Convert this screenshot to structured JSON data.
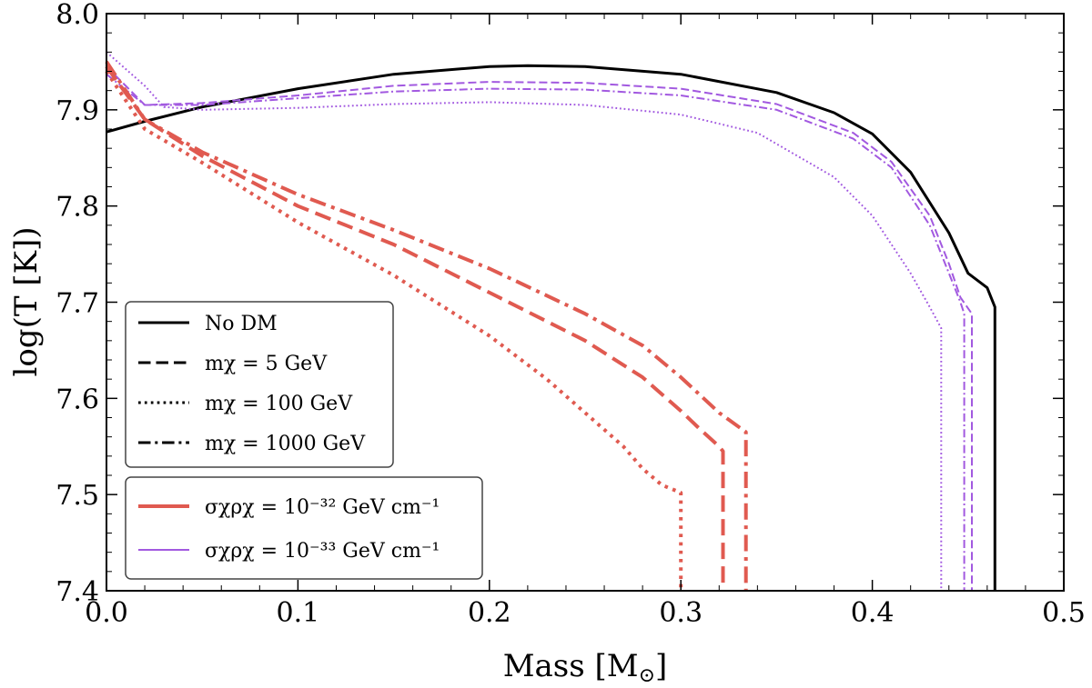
{
  "chart_data": {
    "type": "line",
    "title": "",
    "xlabel": "Mass [M⊙]",
    "ylabel": "log(T [K])",
    "xlim": [
      0.0,
      0.5
    ],
    "ylim": [
      7.4,
      8.0
    ],
    "xticks": [
      "0.0",
      "0.1",
      "0.2",
      "0.3",
      "0.4",
      "0.5"
    ],
    "yticks": [
      "7.4",
      "7.5",
      "7.6",
      "7.7",
      "7.8",
      "7.9",
      "8.0"
    ],
    "grid": false,
    "colors": {
      "nodm": "#000000",
      "red": "#e05a50",
      "purple": "#a259e0"
    },
    "legend_linestyles": [
      {
        "label": "No DM",
        "style": "solid"
      },
      {
        "label": "mχ = 5 GeV",
        "style": "dashed"
      },
      {
        "label": "mχ = 100 GeV",
        "style": "dotted"
      },
      {
        "label": "mχ = 1000 GeV",
        "style": "dashdot"
      }
    ],
    "legend_colors": [
      {
        "label": "σχρχ = 10⁻³² GeV cm⁻¹",
        "color": "red"
      },
      {
        "label": "σχρχ = 10⁻³³ GeV cm⁻¹",
        "color": "purple"
      }
    ],
    "series": [
      {
        "name": "No DM",
        "color": "nodm",
        "style": "solid",
        "width": 3,
        "x": [
          0.0,
          0.02,
          0.05,
          0.1,
          0.15,
          0.2,
          0.22,
          0.25,
          0.3,
          0.35,
          0.38,
          0.4,
          0.42,
          0.44,
          0.45,
          0.46,
          0.464,
          0.464
        ],
        "y": [
          7.877,
          7.888,
          7.903,
          7.922,
          7.937,
          7.945,
          7.946,
          7.945,
          7.937,
          7.918,
          7.897,
          7.875,
          7.835,
          7.772,
          7.73,
          7.715,
          7.695,
          7.4
        ]
      },
      {
        "name": "mχ = 5 GeV, 10⁻³³",
        "color": "purple",
        "style": "dashed",
        "width": 2,
        "x": [
          0.0,
          0.02,
          0.05,
          0.1,
          0.15,
          0.2,
          0.25,
          0.3,
          0.35,
          0.39,
          0.41,
          0.43,
          0.44,
          0.446,
          0.452,
          0.452
        ],
        "y": [
          7.945,
          7.905,
          7.907,
          7.915,
          7.925,
          7.929,
          7.928,
          7.922,
          7.906,
          7.876,
          7.846,
          7.79,
          7.74,
          7.705,
          7.688,
          7.4
        ]
      },
      {
        "name": "mχ = 100 GeV, 10⁻³³",
        "color": "purple",
        "style": "dotted",
        "width": 2,
        "x": [
          0.0,
          0.02,
          0.03,
          0.05,
          0.1,
          0.15,
          0.2,
          0.25,
          0.3,
          0.34,
          0.38,
          0.4,
          0.42,
          0.43,
          0.436,
          0.436
        ],
        "y": [
          7.96,
          7.925,
          7.903,
          7.9,
          7.902,
          7.906,
          7.908,
          7.905,
          7.895,
          7.876,
          7.83,
          7.79,
          7.73,
          7.695,
          7.673,
          7.4
        ]
      },
      {
        "name": "mχ = 1000 GeV, 10⁻³³",
        "color": "purple",
        "style": "dashdot",
        "width": 2,
        "x": [
          0.0,
          0.02,
          0.05,
          0.1,
          0.15,
          0.2,
          0.25,
          0.3,
          0.35,
          0.39,
          0.41,
          0.43,
          0.44,
          0.446,
          0.448,
          0.448
        ],
        "y": [
          7.937,
          7.905,
          7.905,
          7.912,
          7.919,
          7.922,
          7.921,
          7.915,
          7.9,
          7.87,
          7.84,
          7.78,
          7.73,
          7.7,
          7.688,
          7.4
        ]
      },
      {
        "name": "mχ = 5 GeV, 10⁻³²",
        "color": "red",
        "style": "dashed",
        "width": 4,
        "x": [
          0.0,
          0.02,
          0.05,
          0.1,
          0.15,
          0.2,
          0.25,
          0.28,
          0.3,
          0.31,
          0.32,
          0.322,
          0.322
        ],
        "y": [
          7.945,
          7.89,
          7.852,
          7.8,
          7.76,
          7.71,
          7.66,
          7.622,
          7.587,
          7.568,
          7.55,
          7.545,
          7.4
        ]
      },
      {
        "name": "mχ = 100 GeV, 10⁻³²",
        "color": "red",
        "style": "dotted",
        "width": 4,
        "x": [
          0.0,
          0.02,
          0.05,
          0.1,
          0.15,
          0.2,
          0.23,
          0.25,
          0.27,
          0.28,
          0.29,
          0.3,
          0.3
        ],
        "y": [
          7.94,
          7.88,
          7.845,
          7.783,
          7.728,
          7.665,
          7.62,
          7.585,
          7.55,
          7.527,
          7.51,
          7.502,
          7.4
        ]
      },
      {
        "name": "mχ = 1000 GeV, 10⁻³²",
        "color": "red",
        "style": "dashdot",
        "width": 4,
        "x": [
          0.0,
          0.02,
          0.05,
          0.1,
          0.15,
          0.2,
          0.25,
          0.28,
          0.3,
          0.32,
          0.334,
          0.334
        ],
        "y": [
          7.95,
          7.89,
          7.856,
          7.812,
          7.775,
          7.735,
          7.688,
          7.655,
          7.622,
          7.585,
          7.565,
          7.4
        ]
      }
    ]
  }
}
